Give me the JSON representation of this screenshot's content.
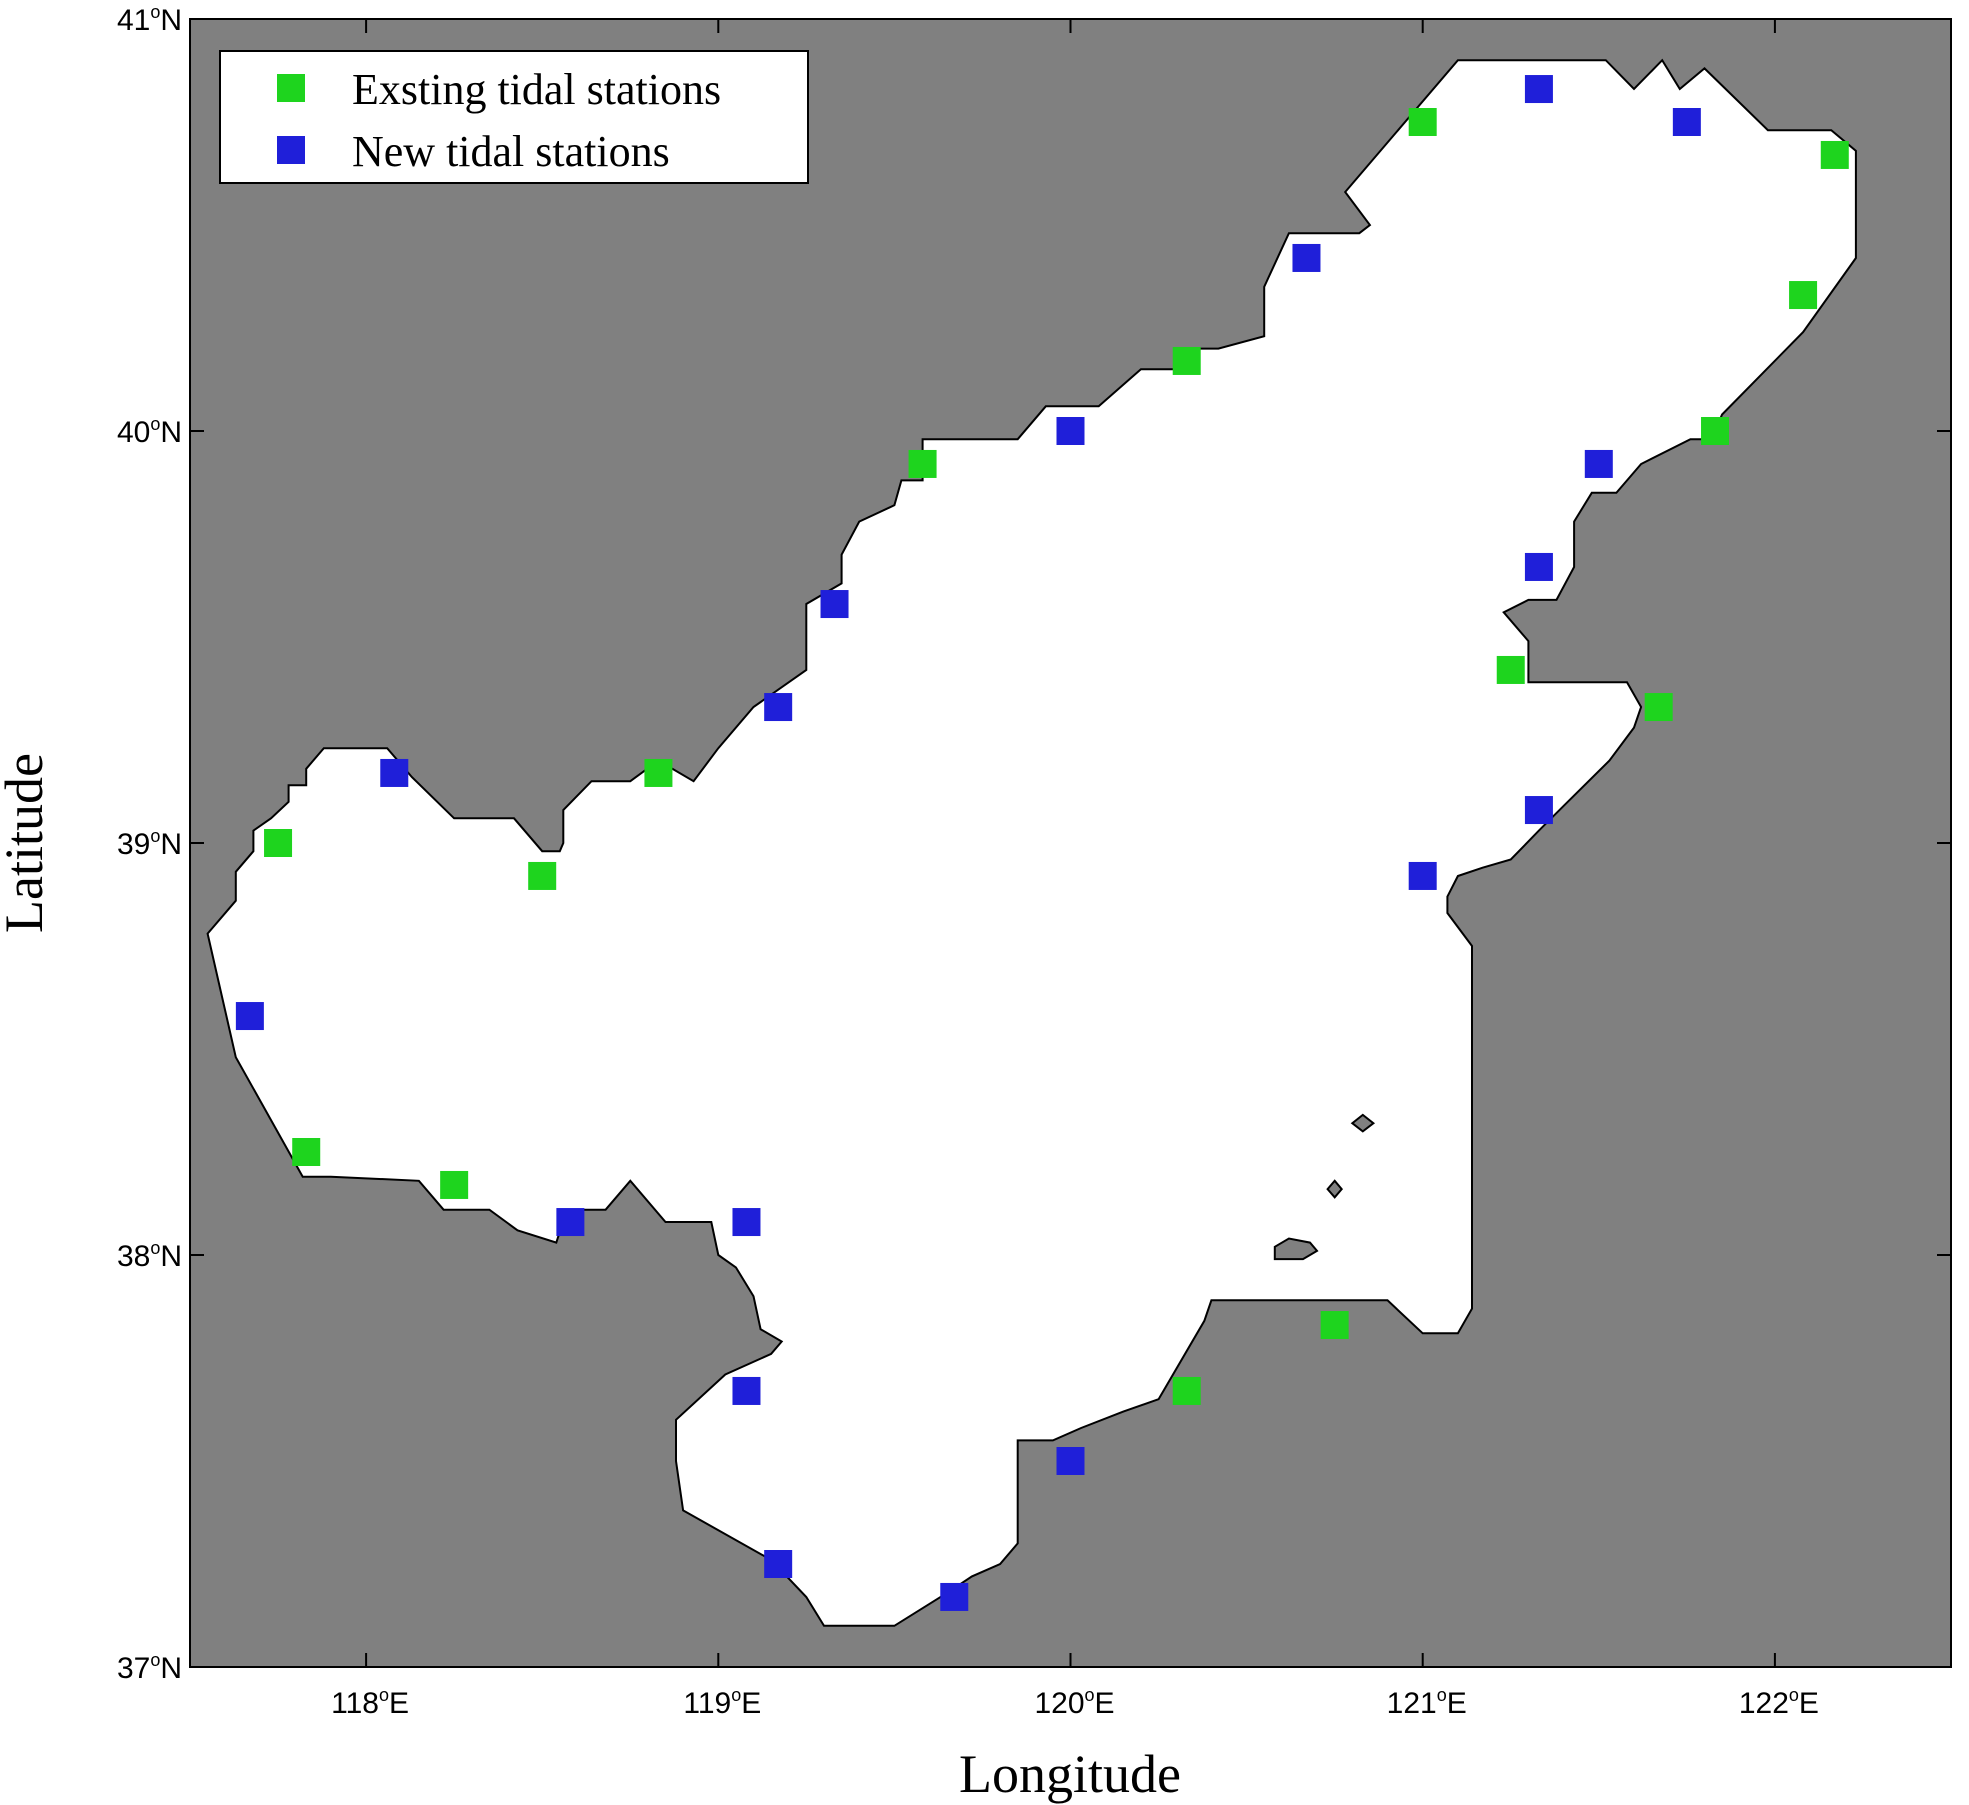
{
  "chart_data": {
    "type": "scatter",
    "xlabel": "Longitude",
    "ylabel": "Latitude",
    "xlim": [
      117.5,
      122.5
    ],
    "ylim": [
      37,
      41
    ],
    "x_ticks": [
      {
        "value": 118,
        "label": "118",
        "suffix": "E"
      },
      {
        "value": 119,
        "label": "119",
        "suffix": "E"
      },
      {
        "value": 120,
        "label": "120",
        "suffix": "E"
      },
      {
        "value": 121,
        "label": "121",
        "suffix": "E"
      },
      {
        "value": 122,
        "label": "122",
        "suffix": "E"
      }
    ],
    "y_ticks": [
      {
        "value": 37,
        "label": "37",
        "suffix": "N"
      },
      {
        "value": 38,
        "label": "38",
        "suffix": "N"
      },
      {
        "value": 39,
        "label": "39",
        "suffix": "N"
      },
      {
        "value": 40,
        "label": "40",
        "suffix": "N"
      },
      {
        "value": 41,
        "label": "41",
        "suffix": "N"
      }
    ],
    "degree_symbol": "o",
    "land_color": "#808080",
    "sea_color": "#ffffff",
    "legend_position": "top-left",
    "coastline": [
      [
        117.55,
        38.78
      ],
      [
        117.63,
        38.86
      ],
      [
        117.63,
        38.93
      ],
      [
        117.68,
        38.98
      ],
      [
        117.68,
        39.03
      ],
      [
        117.73,
        39.06
      ],
      [
        117.78,
        39.1
      ],
      [
        117.78,
        39.14
      ],
      [
        117.83,
        39.14
      ],
      [
        117.83,
        39.18
      ],
      [
        117.88,
        39.23
      ],
      [
        118.06,
        39.23
      ],
      [
        118.13,
        39.16
      ],
      [
        118.25,
        39.06
      ],
      [
        118.42,
        39.06
      ],
      [
        118.5,
        38.98
      ],
      [
        118.55,
        38.98
      ],
      [
        118.56,
        39.0
      ],
      [
        118.56,
        39.08
      ],
      [
        118.64,
        39.15
      ],
      [
        118.75,
        39.15
      ],
      [
        118.83,
        39.2
      ],
      [
        118.93,
        39.15
      ],
      [
        119.0,
        39.23
      ],
      [
        119.1,
        39.33
      ],
      [
        119.25,
        39.42
      ],
      [
        119.25,
        39.58
      ],
      [
        119.35,
        39.63
      ],
      [
        119.35,
        39.7
      ],
      [
        119.4,
        39.78
      ],
      [
        119.5,
        39.82
      ],
      [
        119.52,
        39.88
      ],
      [
        119.58,
        39.88
      ],
      [
        119.58,
        39.98
      ],
      [
        119.85,
        39.98
      ],
      [
        119.93,
        40.06
      ],
      [
        120.08,
        40.06
      ],
      [
        120.2,
        40.15
      ],
      [
        120.3,
        40.15
      ],
      [
        120.32,
        40.2
      ],
      [
        120.42,
        40.2
      ],
      [
        120.55,
        40.23
      ],
      [
        120.55,
        40.35
      ],
      [
        120.62,
        40.48
      ],
      [
        120.82,
        40.48
      ],
      [
        120.85,
        40.5
      ],
      [
        120.78,
        40.58
      ],
      [
        121.1,
        40.9
      ],
      [
        121.52,
        40.9
      ],
      [
        121.6,
        40.83
      ],
      [
        121.68,
        40.9
      ],
      [
        121.73,
        40.83
      ],
      [
        121.8,
        40.88
      ],
      [
        121.98,
        40.73
      ],
      [
        122.16,
        40.73
      ],
      [
        122.23,
        40.68
      ],
      [
        122.23,
        40.42
      ],
      [
        122.08,
        40.24
      ],
      [
        121.85,
        40.04
      ],
      [
        121.82,
        39.98
      ],
      [
        121.76,
        39.98
      ],
      [
        121.62,
        39.92
      ],
      [
        121.55,
        39.85
      ],
      [
        121.48,
        39.85
      ],
      [
        121.43,
        39.78
      ],
      [
        121.43,
        39.67
      ],
      [
        121.38,
        39.59
      ],
      [
        121.3,
        39.59
      ],
      [
        121.23,
        39.56
      ],
      [
        121.3,
        39.49
      ],
      [
        121.3,
        39.39
      ],
      [
        121.58,
        39.39
      ],
      [
        121.62,
        39.33
      ],
      [
        121.6,
        39.28
      ],
      [
        121.53,
        39.2
      ],
      [
        121.4,
        39.09
      ],
      [
        121.33,
        39.03
      ],
      [
        121.25,
        38.96
      ],
      [
        121.17,
        38.94
      ],
      [
        121.1,
        38.92
      ],
      [
        121.07,
        38.87
      ],
      [
        121.07,
        38.83
      ],
      [
        121.14,
        38.75
      ],
      [
        121.14,
        38.38
      ],
      [
        121.14,
        37.87
      ],
      [
        121.1,
        37.81
      ],
      [
        121.0,
        37.81
      ],
      [
        120.9,
        37.89
      ],
      [
        120.65,
        37.89
      ],
      [
        120.4,
        37.89
      ],
      [
        120.38,
        37.84
      ],
      [
        120.25,
        37.65
      ],
      [
        120.15,
        37.62
      ],
      [
        120.03,
        37.58
      ],
      [
        119.95,
        37.55
      ],
      [
        119.85,
        37.55
      ],
      [
        119.85,
        37.3
      ],
      [
        119.8,
        37.25
      ],
      [
        119.72,
        37.22
      ],
      [
        119.65,
        37.18
      ],
      [
        119.5,
        37.1
      ],
      [
        119.3,
        37.1
      ],
      [
        119.25,
        37.17
      ],
      [
        119.15,
        37.26
      ],
      [
        118.9,
        37.38
      ],
      [
        118.88,
        37.5
      ],
      [
        118.88,
        37.6
      ],
      [
        119.02,
        37.71
      ],
      [
        119.15,
        37.76
      ],
      [
        119.18,
        37.79
      ],
      [
        119.12,
        37.82
      ],
      [
        119.1,
        37.9
      ],
      [
        119.05,
        37.97
      ],
      [
        119.0,
        38.0
      ],
      [
        118.98,
        38.08
      ],
      [
        118.85,
        38.08
      ],
      [
        118.75,
        38.18
      ],
      [
        118.68,
        38.11
      ],
      [
        118.57,
        38.11
      ],
      [
        118.54,
        38.03
      ],
      [
        118.43,
        38.06
      ],
      [
        118.35,
        38.11
      ],
      [
        118.22,
        38.11
      ],
      [
        118.15,
        38.18
      ],
      [
        117.9,
        38.19
      ],
      [
        117.82,
        38.19
      ],
      [
        117.63,
        38.48
      ],
      [
        117.55,
        38.78
      ]
    ],
    "islands": [
      [
        [
          120.83,
          38.34
        ],
        [
          120.86,
          38.32
        ],
        [
          120.83,
          38.3
        ],
        [
          120.8,
          38.32
        ]
      ],
      [
        [
          120.75,
          38.18
        ],
        [
          120.77,
          38.16
        ],
        [
          120.75,
          38.14
        ],
        [
          120.73,
          38.16
        ]
      ],
      [
        [
          120.58,
          38.02
        ],
        [
          120.62,
          38.04
        ],
        [
          120.68,
          38.03
        ],
        [
          120.7,
          38.01
        ],
        [
          120.66,
          37.99
        ],
        [
          120.58,
          37.99
        ]
      ]
    ],
    "series": [
      {
        "name": "Exsting tidal stations",
        "color": "#1ed41e",
        "points": [
          {
            "x": 117.75,
            "y": 39.0
          },
          {
            "x": 117.83,
            "y": 38.25
          },
          {
            "x": 118.25,
            "y": 38.17
          },
          {
            "x": 118.5,
            "y": 38.92
          },
          {
            "x": 118.83,
            "y": 39.17
          },
          {
            "x": 119.58,
            "y": 39.92
          },
          {
            "x": 120.33,
            "y": 40.17
          },
          {
            "x": 121.0,
            "y": 40.75
          },
          {
            "x": 122.17,
            "y": 40.67
          },
          {
            "x": 122.08,
            "y": 40.33
          },
          {
            "x": 121.83,
            "y": 40.0
          },
          {
            "x": 121.25,
            "y": 39.42
          },
          {
            "x": 121.67,
            "y": 39.33
          },
          {
            "x": 120.75,
            "y": 37.83
          },
          {
            "x": 120.33,
            "y": 37.67
          }
        ]
      },
      {
        "name": "New tidal stations",
        "color": "#1f1fd9",
        "points": [
          {
            "x": 117.67,
            "y": 38.58
          },
          {
            "x": 118.08,
            "y": 39.17
          },
          {
            "x": 118.58,
            "y": 38.08
          },
          {
            "x": 119.08,
            "y": 38.08
          },
          {
            "x": 119.17,
            "y": 39.33
          },
          {
            "x": 119.33,
            "y": 39.58
          },
          {
            "x": 120.0,
            "y": 40.0
          },
          {
            "x": 120.67,
            "y": 40.42
          },
          {
            "x": 121.33,
            "y": 40.83
          },
          {
            "x": 121.75,
            "y": 40.75
          },
          {
            "x": 121.5,
            "y": 39.92
          },
          {
            "x": 121.33,
            "y": 39.67
          },
          {
            "x": 121.33,
            "y": 39.08
          },
          {
            "x": 121.0,
            "y": 38.92
          },
          {
            "x": 119.08,
            "y": 37.67
          },
          {
            "x": 119.17,
            "y": 37.25
          },
          {
            "x": 119.67,
            "y": 37.17
          },
          {
            "x": 120.0,
            "y": 37.5
          }
        ]
      }
    ]
  }
}
